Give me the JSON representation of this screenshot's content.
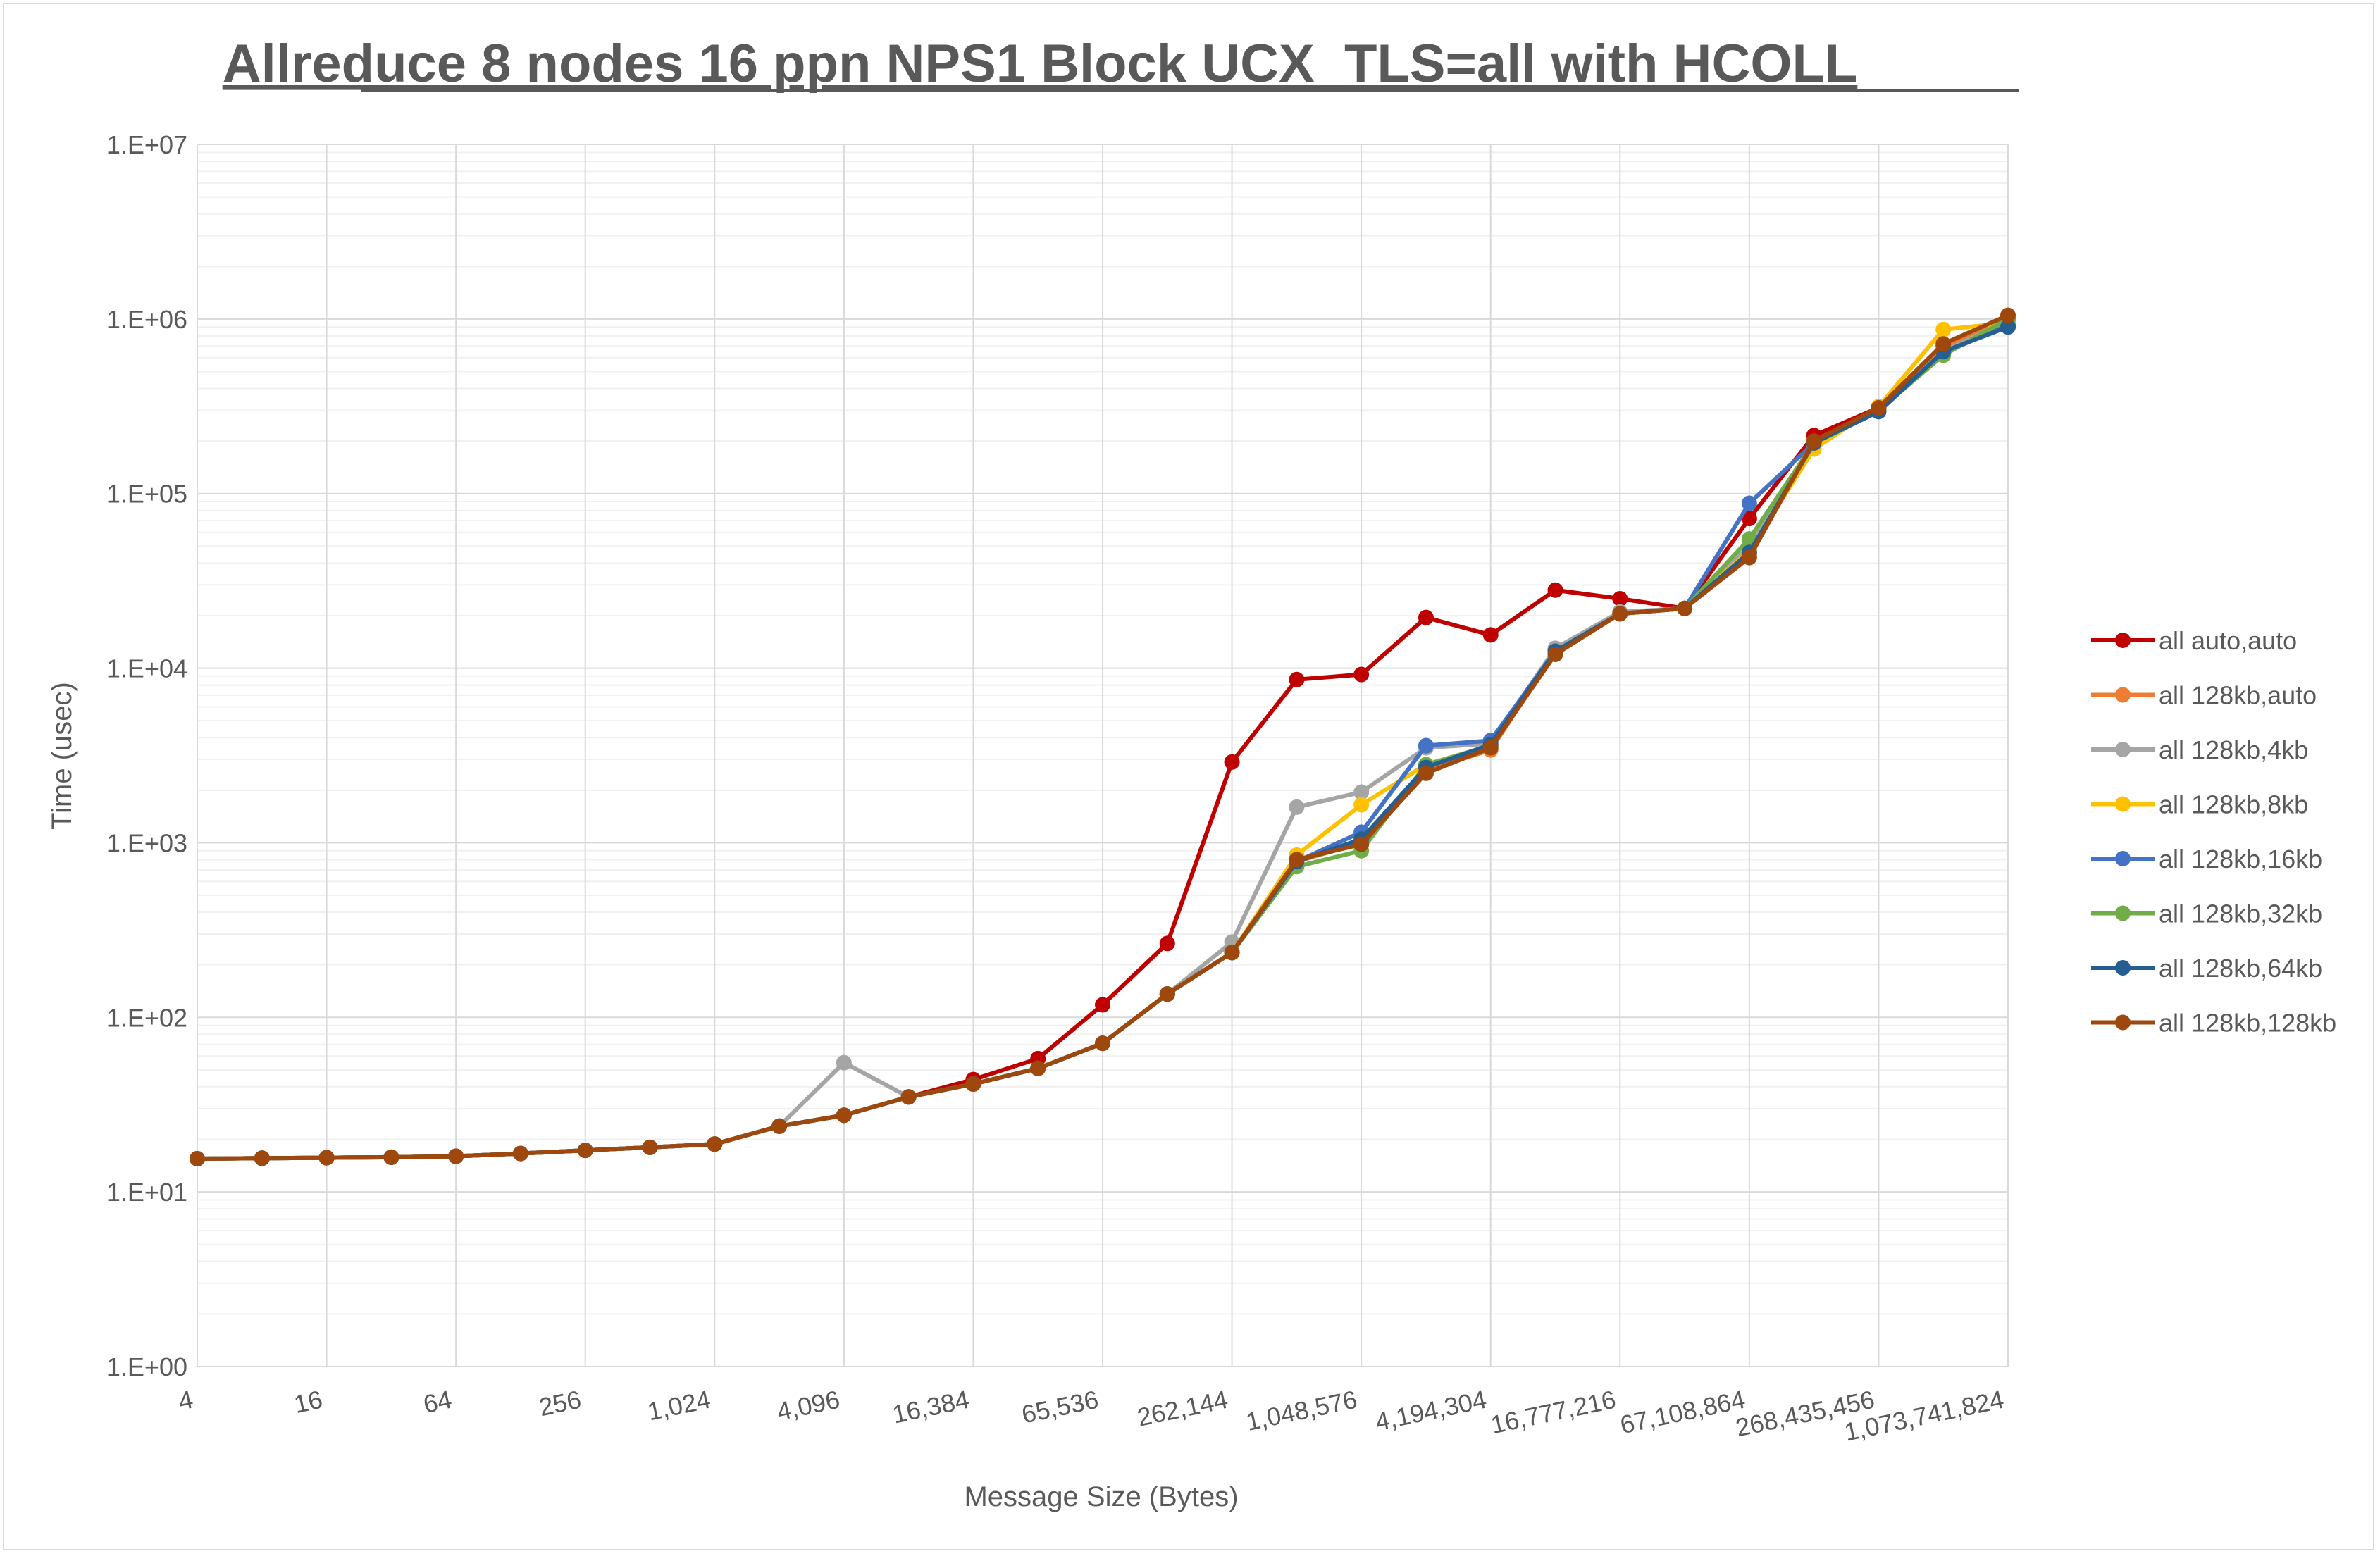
{
  "chart_data": {
    "type": "line",
    "title": "Allreduce 8 nodes 16 ppn NPS1 Block UCX_TLS=all with HCOLL",
    "xlabel": "Message Size (Bytes)",
    "ylabel": "Time (usec)",
    "y_scale": "log",
    "ylim": [
      1,
      10000000
    ],
    "y_ticks": [
      "1.E+00",
      "1.E+01",
      "1.E+02",
      "1.E+03",
      "1.E+04",
      "1.E+05",
      "1.E+06",
      "1.E+07"
    ],
    "x": [
      4,
      8,
      16,
      32,
      64,
      128,
      256,
      512,
      1024,
      2048,
      4096,
      8192,
      16384,
      32768,
      65536,
      131072,
      262144,
      524288,
      1048576,
      2097152,
      4194304,
      8388608,
      16777216,
      33554432,
      67108864,
      134217728,
      268435456,
      536870912,
      1073741824
    ],
    "x_tick_labels": [
      "4",
      "16",
      "64",
      "256",
      "1,024",
      "4,096",
      "16,384",
      "65,536",
      "262,144",
      "1,048,576",
      "4,194,304",
      "16,777,216",
      "67,108,864",
      "268,435,456",
      "1,073,741,824"
    ],
    "grid": true,
    "legend_position": "right",
    "series": [
      {
        "name": "all auto,auto",
        "color": "#C00000",
        "values": [
          15.5,
          15.6,
          15.7,
          15.8,
          16.0,
          16.6,
          17.3,
          18.0,
          18.8,
          23.8,
          27.5,
          35.0,
          44.0,
          58.0,
          118,
          265,
          2900,
          8600,
          9200,
          19500,
          15500,
          28000,
          25000,
          22000,
          72000,
          215000,
          310000,
          700000,
          1000000
        ]
      },
      {
        "name": "all 128kb,auto",
        "color": "#ED7D31",
        "values": [
          15.5,
          15.6,
          15.7,
          15.8,
          16.0,
          16.6,
          17.3,
          18.0,
          18.8,
          23.8,
          27.5,
          35.0,
          41.5,
          51.0,
          71.0,
          136,
          235,
          780,
          1000,
          2600,
          3400,
          12500,
          20500,
          22000,
          45000,
          190000,
          310000,
          680000,
          1000000
        ]
      },
      {
        "name": "all 128kb,4kb",
        "color": "#A5A5A5",
        "values": [
          15.5,
          15.6,
          15.7,
          15.8,
          16.0,
          16.6,
          17.3,
          18.0,
          18.8,
          23.8,
          55.0,
          35.0,
          41.5,
          51.0,
          71.0,
          136,
          270,
          1600,
          1950,
          3500,
          3700,
          13000,
          21000,
          22000,
          50000,
          195000,
          305000,
          650000,
          980000
        ]
      },
      {
        "name": "all 128kb,8kb",
        "color": "#FFC000",
        "values": [
          15.5,
          15.6,
          15.7,
          15.8,
          16.0,
          16.6,
          17.3,
          18.0,
          18.8,
          23.8,
          27.5,
          35.0,
          41.5,
          51.0,
          71.0,
          136,
          235,
          850,
          1650,
          2800,
          3600,
          12500,
          20500,
          22000,
          47000,
          180000,
          315000,
          870000,
          950000
        ]
      },
      {
        "name": "all 128kb,16kb",
        "color": "#4472C4",
        "values": [
          15.5,
          15.6,
          15.7,
          15.8,
          16.0,
          16.6,
          17.3,
          18.0,
          18.8,
          23.8,
          27.5,
          35.0,
          41.5,
          51.0,
          71.0,
          136,
          235,
          780,
          1150,
          3600,
          3850,
          12500,
          20500,
          22000,
          88000,
          195000,
          295000,
          640000,
          920000
        ]
      },
      {
        "name": "all 128kb,32kb",
        "color": "#70AD47",
        "values": [
          15.5,
          15.6,
          15.7,
          15.8,
          16.0,
          16.6,
          17.3,
          18.0,
          18.8,
          23.8,
          27.5,
          35.0,
          41.5,
          51.0,
          71.0,
          136,
          235,
          730,
          900,
          2800,
          3600,
          12500,
          20500,
          22000,
          55000,
          195000,
          300000,
          620000,
          1000000
        ]
      },
      {
        "name": "all 128kb,64kb",
        "color": "#255E91",
        "values": [
          15.5,
          15.6,
          15.7,
          15.8,
          16.0,
          16.6,
          17.3,
          18.0,
          18.8,
          23.8,
          27.5,
          35.0,
          41.5,
          51.0,
          71.0,
          136,
          235,
          780,
          1050,
          2700,
          3650,
          12500,
          20500,
          22000,
          46000,
          195000,
          295000,
          650000,
          900000
        ]
      },
      {
        "name": "all 128kb,128kb",
        "color": "#9E480E",
        "values": [
          15.5,
          15.6,
          15.7,
          15.8,
          16.0,
          16.6,
          17.3,
          18.0,
          18.8,
          23.8,
          27.5,
          35.0,
          41.5,
          51.0,
          71.0,
          136,
          235,
          800,
          980,
          2500,
          3500,
          12000,
          20500,
          22000,
          43000,
          200000,
          310000,
          720000,
          1050000
        ]
      }
    ]
  }
}
